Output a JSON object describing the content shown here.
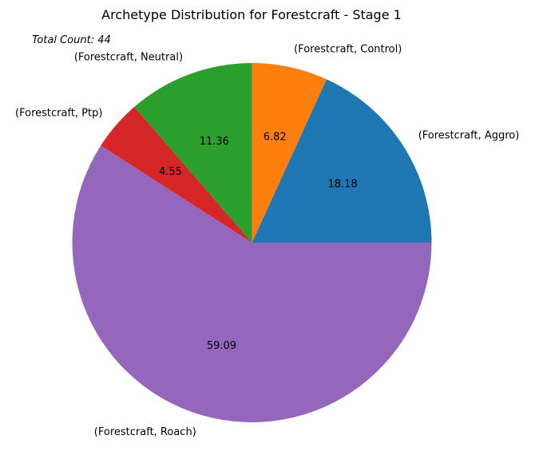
{
  "chart_data": {
    "type": "pie",
    "title": "Archetype Distribution for Forestcraft - Stage 1",
    "annotation": "Total Count: 44",
    "start_angle_deg": 0,
    "direction": "counterclockwise",
    "slices": [
      {
        "label": "(Forestcraft, Aggro)",
        "value": 18.18,
        "display": "18.18",
        "color": "#1f77b4"
      },
      {
        "label": "(Forestcraft, Control)",
        "value": 6.82,
        "display": "6.82",
        "color": "#ff7f0e"
      },
      {
        "label": "(Forestcraft, Neutral)",
        "value": 11.36,
        "display": "11.36",
        "color": "#2ca02c"
      },
      {
        "label": "(Forestcraft, Ptp)",
        "value": 4.55,
        "display": "4.55",
        "color": "#d62728"
      },
      {
        "label": "(Forestcraft, Roach)",
        "value": 59.09,
        "display": "59.09",
        "color": "#9467bd"
      }
    ]
  }
}
